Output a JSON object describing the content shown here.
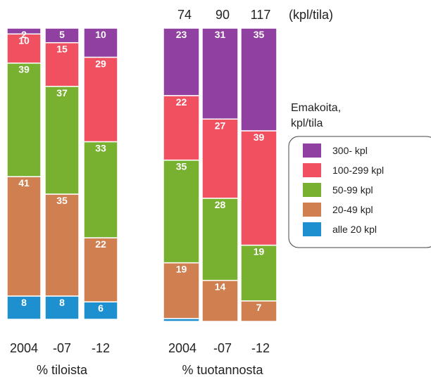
{
  "chart_data": [
    {
      "type": "bar",
      "stacked": true,
      "xlabel": "% tiloista",
      "categories": [
        "2004",
        "-07",
        "-12"
      ],
      "series": [
        {
          "name": "alle 20 kpl",
          "color": "#1e90d0",
          "values": [
            8,
            8,
            6
          ]
        },
        {
          "name": "20-49 kpl",
          "color": "#d08050",
          "values": [
            41,
            35,
            22
          ]
        },
        {
          "name": "50-99 kpl",
          "color": "#78b030",
          "values": [
            39,
            37,
            33
          ]
        },
        {
          "name": "100-299 kpl",
          "color": "#f05060",
          "values": [
            10,
            15,
            29
          ]
        },
        {
          "name": "300- kpl",
          "color": "#9040a0",
          "values": [
            2,
            5,
            10
          ]
        }
      ]
    },
    {
      "type": "bar",
      "stacked": true,
      "xlabel": "% tuotannosta",
      "categories": [
        "2004",
        "-07",
        "-12"
      ],
      "top_labels": [
        "74",
        "90",
        "117"
      ],
      "top_unit": "(kpl/tila)",
      "series": [
        {
          "name": "alle 20 kpl",
          "color": "#1e90d0",
          "values": [
            1,
            0,
            0
          ]
        },
        {
          "name": "20-49 kpl",
          "color": "#d08050",
          "values": [
            19,
            14,
            7
          ]
        },
        {
          "name": "50-99 kpl",
          "color": "#78b030",
          "values": [
            35,
            28,
            19
          ]
        },
        {
          "name": "100-299 kpl",
          "color": "#f05060",
          "values": [
            22,
            27,
            39
          ]
        },
        {
          "name": "300- kpl",
          "color": "#9040a0",
          "values": [
            23,
            31,
            35
          ]
        }
      ]
    }
  ],
  "legend": {
    "title_line1": "Emakoita,",
    "title_line2": "kpl/tila",
    "items": [
      {
        "label": "300- kpl",
        "color": "#9040a0"
      },
      {
        "label": "100-299 kpl",
        "color": "#f05060"
      },
      {
        "label": "50-99 kpl",
        "color": "#78b030"
      },
      {
        "label": "20-49 kpl",
        "color": "#d08050"
      },
      {
        "label": "alle 20 kpl",
        "color": "#1e90d0"
      }
    ]
  }
}
